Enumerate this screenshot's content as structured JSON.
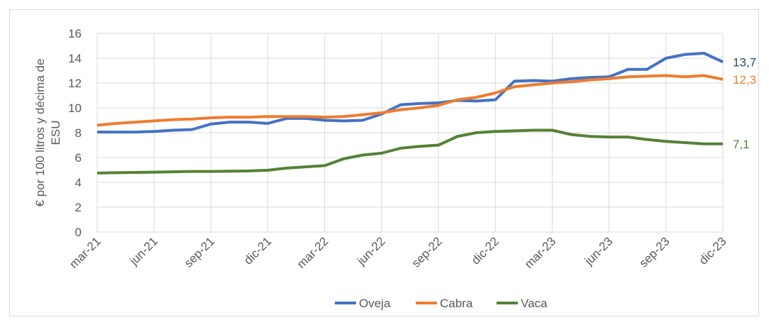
{
  "chart_data": {
    "type": "line",
    "y_label": [
      "€ por 100 litros y décima de",
      "ESU"
    ],
    "categories": [
      "mar-21",
      null,
      null,
      "jun-21",
      null,
      null,
      "sep-21",
      null,
      null,
      "dic-21",
      null,
      null,
      "mar-22",
      null,
      null,
      "jun-22",
      null,
      null,
      "sep-22",
      null,
      null,
      "dic-22",
      null,
      null,
      "mar-23",
      null,
      null,
      "jun-23",
      null,
      null,
      "sep-23",
      null,
      null,
      "dic-23"
    ],
    "series": [
      {
        "name": "Oveja",
        "color": "#4472c4",
        "label_color": "#1f4e79",
        "values": [
          8.05,
          8.05,
          8.05,
          8.1,
          8.2,
          8.25,
          8.7,
          8.85,
          8.85,
          8.75,
          9.15,
          9.15,
          9.0,
          8.95,
          9.0,
          9.5,
          10.25,
          10.35,
          10.4,
          10.6,
          10.55,
          10.65,
          12.15,
          12.2,
          12.15,
          12.35,
          12.45,
          12.5,
          13.1,
          13.1,
          14.0,
          14.3,
          14.4,
          13.7
        ],
        "value_labels": [
          null,
          null,
          null,
          null,
          null,
          null,
          null,
          null,
          null,
          null,
          null,
          null,
          null,
          null,
          null,
          null,
          null,
          null,
          null,
          null,
          null,
          null,
          null,
          null,
          null,
          null,
          null,
          null,
          null,
          null,
          null,
          null,
          null,
          "13,7"
        ]
      },
      {
        "name": "Cabra",
        "color": "#ed7d31",
        "label_color": "#ed7d31",
        "values": [
          8.6,
          8.75,
          8.85,
          8.95,
          9.05,
          9.1,
          9.2,
          9.25,
          9.25,
          9.3,
          9.3,
          9.3,
          9.25,
          9.3,
          9.45,
          9.6,
          9.85,
          10.0,
          10.2,
          10.65,
          10.85,
          11.2,
          11.7,
          11.85,
          12.0,
          12.1,
          12.25,
          12.35,
          12.5,
          12.55,
          12.6,
          12.5,
          12.6,
          12.3
        ],
        "value_labels": [
          null,
          null,
          null,
          null,
          null,
          null,
          null,
          null,
          null,
          null,
          null,
          null,
          null,
          null,
          null,
          null,
          null,
          null,
          null,
          null,
          null,
          null,
          null,
          null,
          null,
          null,
          null,
          null,
          null,
          null,
          null,
          null,
          null,
          "12,3"
        ]
      },
      {
        "name": "Vaca",
        "color": "#548235",
        "label_color": "#548235",
        "values": [
          4.75,
          4.78,
          4.8,
          4.82,
          4.85,
          4.88,
          4.88,
          4.9,
          4.92,
          4.98,
          5.15,
          5.25,
          5.35,
          5.9,
          6.2,
          6.35,
          6.75,
          6.9,
          7.0,
          7.7,
          8.0,
          8.1,
          8.15,
          8.2,
          8.2,
          7.85,
          7.7,
          7.65,
          7.65,
          7.45,
          7.3,
          7.2,
          7.1,
          7.1
        ],
        "value_labels": [
          null,
          null,
          null,
          null,
          null,
          null,
          null,
          null,
          null,
          null,
          null,
          null,
          null,
          null,
          null,
          null,
          null,
          null,
          null,
          null,
          null,
          null,
          null,
          null,
          null,
          null,
          null,
          null,
          null,
          null,
          null,
          null,
          null,
          "7,1"
        ]
      }
    ],
    "ylim": [
      0,
      16
    ],
    "yticks": [
      0,
      2,
      4,
      6,
      8,
      10,
      12,
      14,
      16
    ],
    "grid": true,
    "legend": "bottom"
  }
}
